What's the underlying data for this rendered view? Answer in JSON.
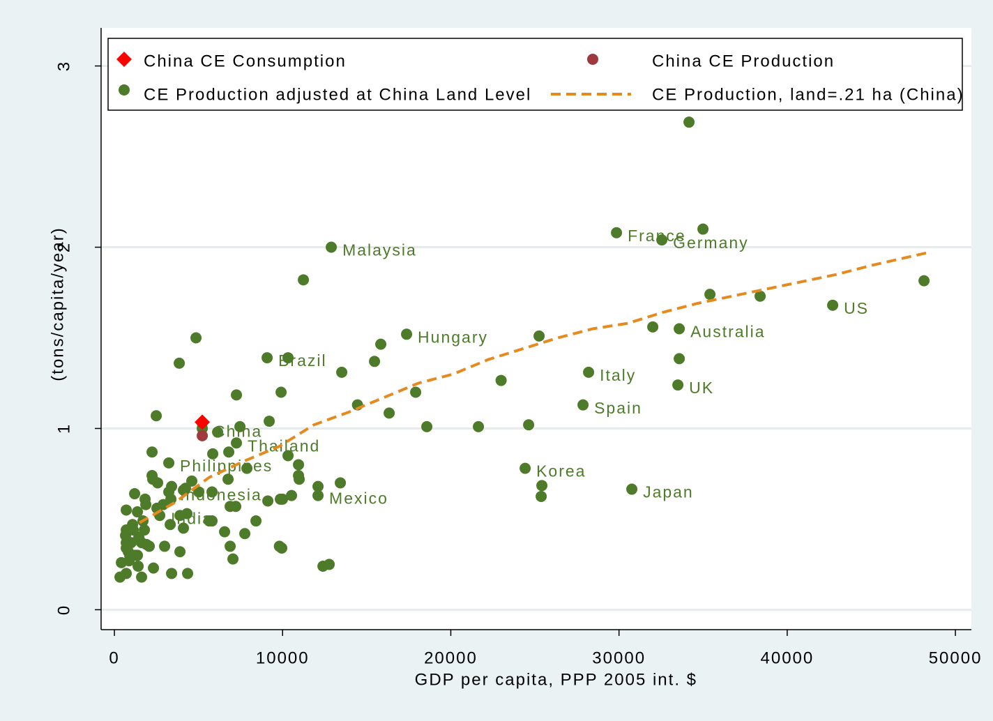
{
  "chart_data": {
    "type": "scatter",
    "x_label": "GDP per capita, PPP 2005 int. $",
    "y_label": "(tons/capita/year)",
    "xlim": [
      -790,
      50950
    ],
    "ylim": [
      -0.11,
      3.21
    ],
    "xticks": [
      0,
      10000,
      20000,
      30000,
      40000,
      50000
    ],
    "yticks": [
      0,
      1,
      2,
      3
    ],
    "grid": true,
    "legend": "top",
    "series": [
      {
        "name": "China CE Consumption",
        "type": "scatter",
        "marker": "diamond",
        "color": "#ff0000",
        "x": [
          5224
        ],
        "values": [
          1.035
        ]
      },
      {
        "name": "China CE Production",
        "type": "scatter",
        "marker": "circle",
        "color": "#9e3a3e",
        "x": [
          5224
        ],
        "values": [
          0.96
        ]
      },
      {
        "name": "CE Production adjusted at China Land Level",
        "type": "scatter",
        "marker": "circle",
        "color": "#4e7b2a",
        "x": [
          5224,
          12894,
          29851,
          32546,
          17371,
          9080,
          7255,
          3234,
          3234,
          2695,
          12106,
          24420,
          30763,
          28192,
          27861,
          33500,
          33582,
          42703,
          5224,
          34163,
          34992,
          48134,
          35406,
          38391,
          32007,
          33582,
          25249,
          22990,
          21642,
          24627,
          25415,
          25373,
          18574,
          17910,
          16335,
          15837,
          15464,
          14453,
          13516,
          11236,
          10323,
          9909,
          9204,
          7463,
          7255,
          4851,
          3856,
          2488,
          13433,
          12106,
          10945,
          10945,
          10987,
          10531,
          10323,
          9992,
          9867,
          9121,
          7877,
          6799,
          6758,
          6136,
          5846,
          5804,
          7214,
          6882,
          8416,
          7753,
          6551,
          6882,
          7048,
          5804,
          5638,
          5017,
          4602,
          4229,
          4104,
          4312,
          4104,
          3897,
          3897,
          4353,
          3400,
          2985,
          3400,
          3358,
          3317,
          2570,
          2239,
          2280,
          2239,
          1824,
          1866,
          1700,
          1617,
          1907,
          2073,
          2322,
          1617,
          1410,
          1368,
          1202,
          1368,
          1078,
          1119,
          995,
          829,
          912,
          871,
          705,
          705,
          705,
          663,
          705,
          415,
          705,
          332,
          1244,
          1451,
          1783,
          2902,
          2529,
          12400,
          12770,
          9810,
          9950
        ],
        "values": [
          1.0,
          2.0,
          2.08,
          2.04,
          1.52,
          1.39,
          0.92,
          0.81,
          0.65,
          0.52,
          0.63,
          0.78,
          0.665,
          1.31,
          1.13,
          1.24,
          1.55,
          1.68,
          1.03,
          2.69,
          2.1,
          1.815,
          1.74,
          1.73,
          1.56,
          1.385,
          1.51,
          1.265,
          1.01,
          1.02,
          0.685,
          0.625,
          1.01,
          1.2,
          1.085,
          1.465,
          1.37,
          1.13,
          1.31,
          1.82,
          1.39,
          1.2,
          1.04,
          1.01,
          1.185,
          1.5,
          1.36,
          1.07,
          0.7,
          0.68,
          0.8,
          0.74,
          0.72,
          0.63,
          0.85,
          0.61,
          0.61,
          0.6,
          0.78,
          0.87,
          0.72,
          0.98,
          0.86,
          0.65,
          0.57,
          0.57,
          0.49,
          0.42,
          0.43,
          0.35,
          0.28,
          0.49,
          0.49,
          0.65,
          0.71,
          0.67,
          0.66,
          0.53,
          0.45,
          0.52,
          0.32,
          0.2,
          0.2,
          0.35,
          0.68,
          0.61,
          0.47,
          0.7,
          0.74,
          0.72,
          0.87,
          0.61,
          0.58,
          0.49,
          0.37,
          0.36,
          0.35,
          0.23,
          0.18,
          0.24,
          0.3,
          0.64,
          0.54,
          0.47,
          0.44,
          0.37,
          0.32,
          0.3,
          0.27,
          0.44,
          0.37,
          0.34,
          0.41,
          0.55,
          0.26,
          0.2,
          0.18,
          0.3,
          0.4,
          0.44,
          0.58,
          0.56,
          0.24,
          0.25,
          0.35,
          0.34
        ],
        "labels": [
          "China",
          "Malaysia",
          "France",
          "Germany",
          "Hungary",
          "Brazil",
          "Thailand",
          "Philippines",
          "Indonesia",
          "India",
          "Mexico",
          "Korea",
          "Japan",
          "Italy",
          "Spain",
          "UK",
          "Australia",
          "US",
          null,
          null,
          null,
          null,
          null,
          null,
          null,
          null,
          null,
          null,
          null,
          null,
          null,
          null,
          null,
          null,
          null,
          null,
          null,
          null,
          null,
          null,
          null,
          null,
          null,
          null,
          null,
          null,
          null,
          null,
          null,
          null,
          null,
          null,
          null,
          null,
          null,
          null,
          null,
          null,
          null,
          null,
          null,
          null,
          null,
          null,
          null,
          null,
          null,
          null,
          null,
          null,
          null,
          null,
          null,
          null,
          null,
          null,
          null,
          null,
          null,
          null,
          null,
          null,
          null,
          null,
          null,
          null,
          null,
          null,
          null,
          null,
          null,
          null,
          null,
          null,
          null,
          null,
          null,
          null,
          null,
          null,
          null,
          null,
          null,
          null,
          null,
          null,
          null,
          null,
          null,
          null,
          null,
          null,
          null,
          null,
          null,
          null,
          null,
          null,
          null,
          null,
          null,
          null,
          null,
          null,
          null,
          null
        ]
      },
      {
        "name": "CE Production, land=.21 ha (China)",
        "type": "line",
        "dashed": true,
        "color": "#e58a1f",
        "x": [
          1493,
          3566,
          5638,
          7711,
          9784,
          11858,
          13930,
          16003,
          18076,
          20149,
          22222,
          24295,
          26368,
          28441,
          30514,
          32587,
          34660,
          36733,
          38806,
          40879,
          42952,
          45025,
          48342
        ],
        "values": [
          0.48,
          0.59,
          0.73,
          0.82,
          0.9,
          1.02,
          1.09,
          1.17,
          1.25,
          1.3,
          1.38,
          1.44,
          1.5,
          1.55,
          1.58,
          1.64,
          1.69,
          1.73,
          1.77,
          1.81,
          1.85,
          1.9,
          1.97
        ]
      }
    ]
  }
}
